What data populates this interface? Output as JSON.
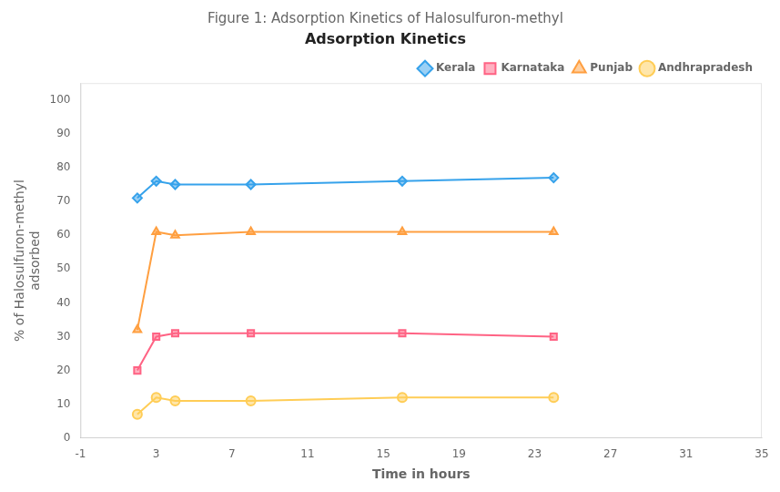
{
  "chart_data": {
    "type": "line",
    "title": "Figure 1: Adsorption Kinetics of Halosulfuron-methyl",
    "subtitle": "Adsorption Kinetics",
    "x_label": "Time in hours",
    "y_label": "% of Halosulfuron-methyl\nadsorbed",
    "x": [
      2,
      3,
      4,
      8,
      16,
      24
    ],
    "series": [
      {
        "name": "Kerala",
        "marker": "diamond",
        "values": [
          71,
          76,
          75,
          75,
          76,
          77
        ]
      },
      {
        "name": "Karnataka",
        "marker": "square",
        "values": [
          20,
          30,
          31,
          31,
          31,
          30
        ]
      },
      {
        "name": "Punjab",
        "marker": "triangle",
        "values": [
          32,
          61,
          60,
          61,
          61,
          61
        ]
      },
      {
        "name": "Andhrapradesh",
        "marker": "circle",
        "values": [
          7,
          12,
          11,
          11,
          12,
          12
        ]
      }
    ],
    "xlim": [
      -1,
      35
    ],
    "xticks": [
      -1,
      3,
      7,
      11,
      15,
      19,
      23,
      27,
      31,
      35
    ],
    "ylim": [
      0,
      105
    ],
    "yticks": [
      0,
      10,
      20,
      30,
      40,
      50,
      60,
      70,
      80,
      90,
      100
    ],
    "grid": false,
    "legend": "upper right"
  }
}
